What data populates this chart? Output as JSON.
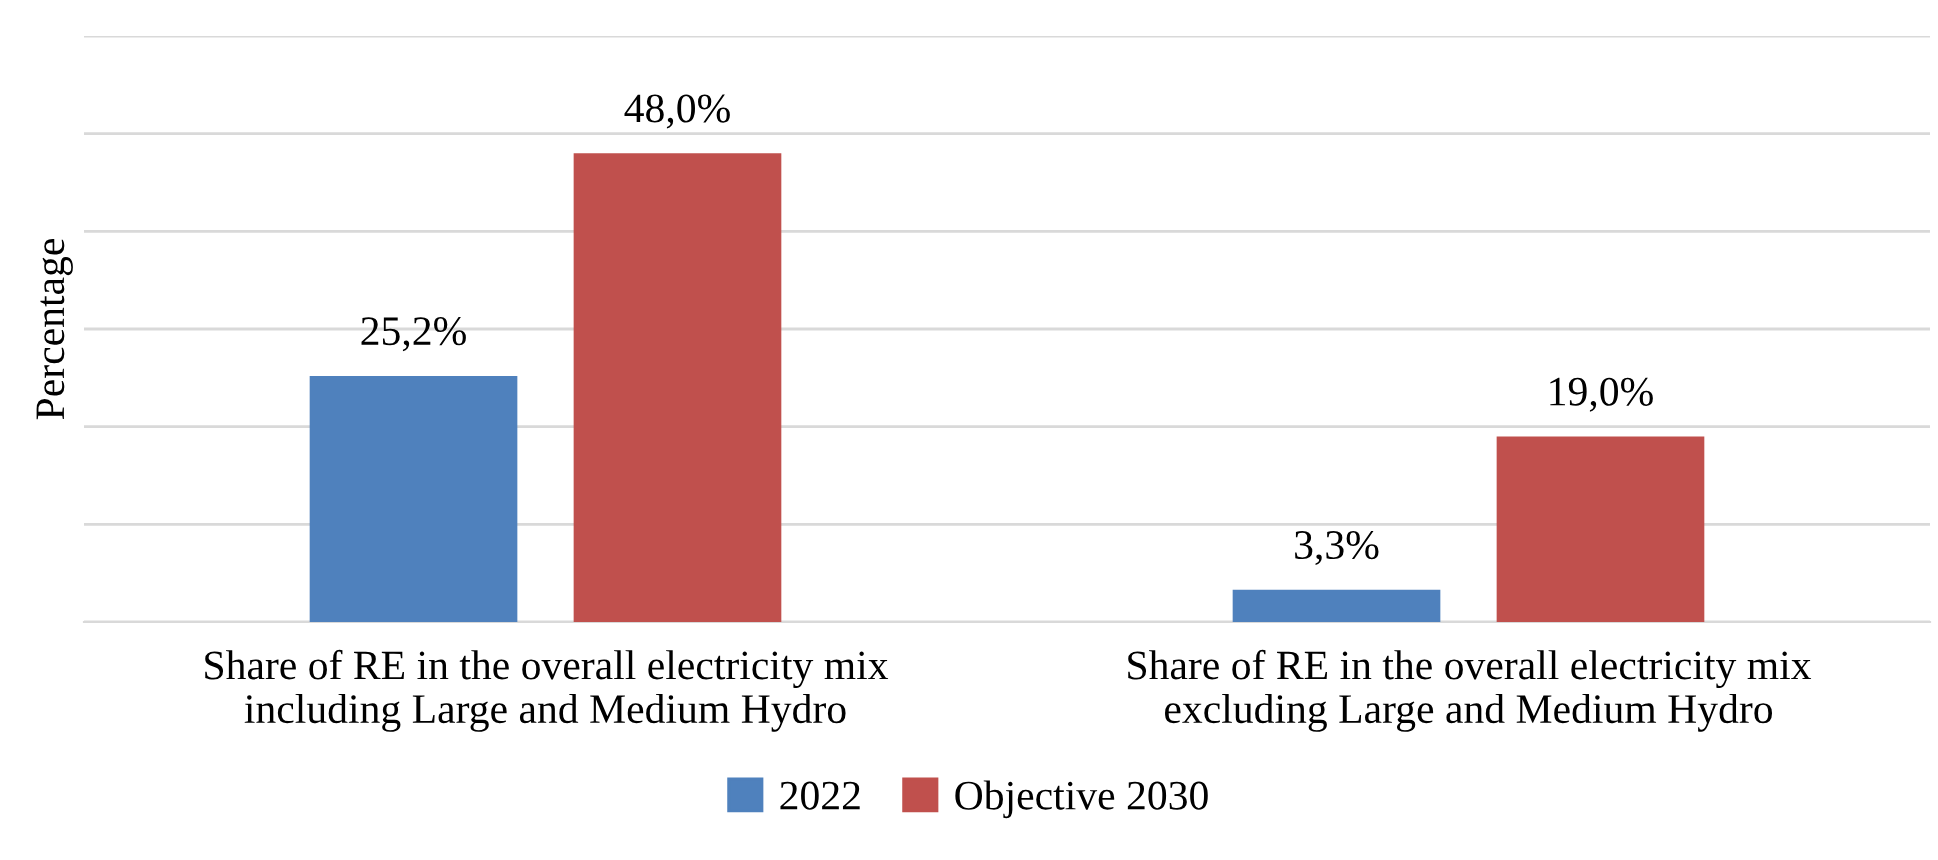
{
  "chart_data": {
    "type": "bar",
    "ylabel": "Percentage",
    "categories": [
      "Share of RE in the overall electricity mix\nincluding Large and Medium Hydro",
      "Share of RE in the overall electricity mix\nexcluding Large and Medium Hydro"
    ],
    "series": [
      {
        "name": "2022",
        "color": "#4f81bd",
        "values": [
          25.2,
          3.3
        ],
        "value_labels": [
          "25,2%",
          "3,3%"
        ]
      },
      {
        "name": "Objective 2030",
        "color": "#c0504d",
        "values": [
          48.0,
          19.0
        ],
        "value_labels": [
          "48,0%",
          "19,0%"
        ]
      }
    ],
    "ylim": [
      0,
      60
    ],
    "yticks": [
      {
        "value": 0,
        "label": null
      },
      {
        "value": 10,
        "label": null
      },
      {
        "value": 20,
        "label": null
      },
      {
        "value": 30,
        "label": null
      },
      {
        "value": 40,
        "label": null
      },
      {
        "value": 50,
        "label": null
      },
      {
        "value": 60,
        "label": null
      }
    ],
    "tick_labels": "x",
    "grid": "y",
    "legend": "bottom"
  }
}
